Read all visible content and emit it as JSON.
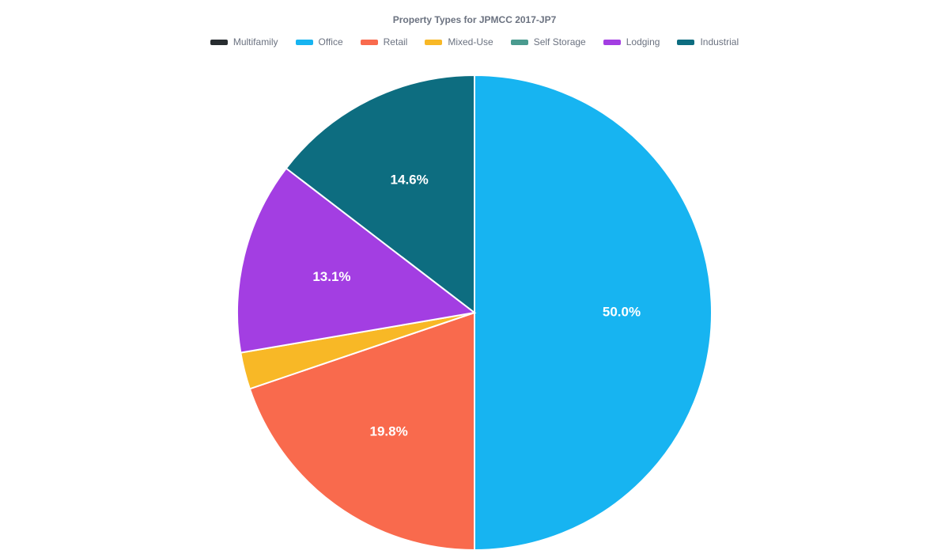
{
  "chart": {
    "type": "pie",
    "title": "Property Types for JPMCC 2017-JP7",
    "title_fontsize": 12,
    "title_color": "#6b7280",
    "background_color": "#ffffff",
    "stroke_color": "#ffffff",
    "stroke_width": 2,
    "radius": 300,
    "label_fontsize": 17,
    "label_color": "#ffffff",
    "label_threshold_pct": 5,
    "legend": {
      "position": "top",
      "fontsize": 12,
      "color": "#6b7280",
      "swatch_width": 22,
      "swatch_height": 7
    },
    "series": [
      {
        "name": "Multifamily",
        "value": 0.0,
        "color": "#282d30",
        "show_label": false
      },
      {
        "name": "Office",
        "value": 50.0,
        "color": "#17b4f1",
        "show_label": true,
        "label": "50.0%"
      },
      {
        "name": "Retail",
        "value": 19.8,
        "color": "#f96a4d",
        "show_label": true,
        "label": "19.8%"
      },
      {
        "name": "Mixed-Use",
        "value": 2.5,
        "color": "#f8b826",
        "show_label": false
      },
      {
        "name": "Self Storage",
        "value": 0.0,
        "color": "#4a9b8f",
        "show_label": false
      },
      {
        "name": "Lodging",
        "value": 13.1,
        "color": "#a33ee2",
        "show_label": true,
        "label": "13.1%"
      },
      {
        "name": "Industrial",
        "value": 14.6,
        "color": "#0d6d80",
        "show_label": true,
        "label": "14.6%"
      }
    ]
  }
}
